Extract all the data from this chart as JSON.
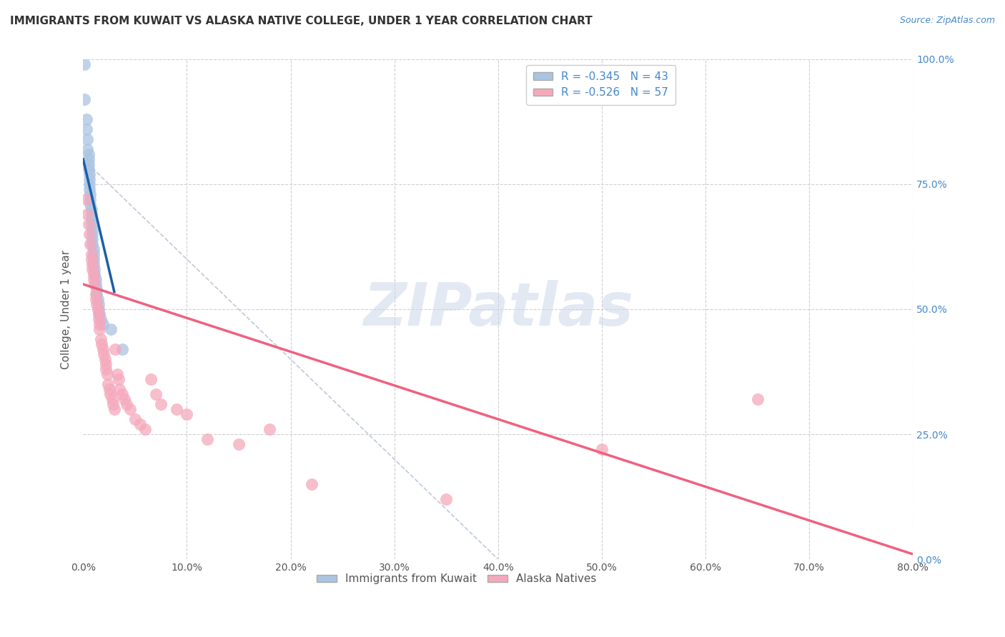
{
  "title": "IMMIGRANTS FROM KUWAIT VS ALASKA NATIVE COLLEGE, UNDER 1 YEAR CORRELATION CHART",
  "source": "Source: ZipAtlas.com",
  "ylabel": "College, Under 1 year",
  "legend_label1": "Immigrants from Kuwait",
  "legend_label2": "Alaska Natives",
  "r1": "-0.345",
  "n1": "43",
  "r2": "-0.526",
  "n2": "57",
  "color_blue": "#aac4e2",
  "color_pink": "#f5a8bc",
  "color_blue_line": "#1a5fa8",
  "color_pink_line": "#f06080",
  "color_dashed": "#c0c8d8",
  "xlim": [
    0.0,
    0.8
  ],
  "ylim": [
    0.0,
    1.0
  ],
  "xtick_labels": [
    "0.0%",
    "10.0%",
    "20.0%",
    "30.0%",
    "40.0%",
    "50.0%",
    "60.0%",
    "70.0%",
    "80.0%"
  ],
  "ytick_labels_right": [
    "0.0%",
    "25.0%",
    "50.0%",
    "75.0%",
    "100.0%"
  ],
  "blue_x": [
    0.001,
    0.001,
    0.003,
    0.003,
    0.004,
    0.004,
    0.005,
    0.005,
    0.005,
    0.005,
    0.006,
    0.006,
    0.006,
    0.006,
    0.007,
    0.007,
    0.007,
    0.008,
    0.008,
    0.008,
    0.008,
    0.009,
    0.009,
    0.009,
    0.009,
    0.01,
    0.01,
    0.01,
    0.01,
    0.011,
    0.011,
    0.012,
    0.012,
    0.013,
    0.013,
    0.014,
    0.015,
    0.015,
    0.016,
    0.017,
    0.019,
    0.027,
    0.038
  ],
  "blue_y": [
    0.99,
    0.92,
    0.88,
    0.86,
    0.84,
    0.82,
    0.81,
    0.8,
    0.79,
    0.78,
    0.77,
    0.76,
    0.75,
    0.74,
    0.73,
    0.72,
    0.71,
    0.7,
    0.69,
    0.68,
    0.67,
    0.66,
    0.65,
    0.64,
    0.63,
    0.62,
    0.61,
    0.6,
    0.59,
    0.58,
    0.57,
    0.56,
    0.55,
    0.54,
    0.53,
    0.52,
    0.51,
    0.5,
    0.49,
    0.48,
    0.47,
    0.46,
    0.42
  ],
  "pink_x": [
    0.003,
    0.004,
    0.005,
    0.006,
    0.007,
    0.008,
    0.008,
    0.009,
    0.009,
    0.01,
    0.01,
    0.011,
    0.012,
    0.012,
    0.013,
    0.014,
    0.015,
    0.015,
    0.016,
    0.016,
    0.017,
    0.018,
    0.019,
    0.02,
    0.021,
    0.022,
    0.022,
    0.023,
    0.024,
    0.025,
    0.026,
    0.028,
    0.029,
    0.03,
    0.031,
    0.033,
    0.034,
    0.035,
    0.038,
    0.04,
    0.042,
    0.045,
    0.05,
    0.055,
    0.06,
    0.065,
    0.07,
    0.075,
    0.09,
    0.1,
    0.12,
    0.15,
    0.18,
    0.22,
    0.35,
    0.5,
    0.65
  ],
  "pink_y": [
    0.72,
    0.69,
    0.67,
    0.65,
    0.63,
    0.61,
    0.6,
    0.59,
    0.58,
    0.57,
    0.56,
    0.55,
    0.53,
    0.52,
    0.51,
    0.5,
    0.49,
    0.48,
    0.47,
    0.46,
    0.44,
    0.43,
    0.42,
    0.41,
    0.4,
    0.39,
    0.38,
    0.37,
    0.35,
    0.34,
    0.33,
    0.32,
    0.31,
    0.3,
    0.42,
    0.37,
    0.36,
    0.34,
    0.33,
    0.32,
    0.31,
    0.3,
    0.28,
    0.27,
    0.26,
    0.36,
    0.33,
    0.31,
    0.3,
    0.29,
    0.24,
    0.23,
    0.26,
    0.15,
    0.12,
    0.22,
    0.32
  ],
  "blue_line_x": [
    0.0,
    0.03
  ],
  "blue_line_y": [
    0.8,
    0.535
  ],
  "pink_line_x": [
    0.0,
    0.8
  ],
  "pink_line_y": [
    0.55,
    0.01
  ],
  "dash_line_x": [
    0.0,
    0.4
  ],
  "dash_line_y": [
    0.8,
    0.0
  ],
  "watermark": "ZIPatlas",
  "background_color": "#ffffff",
  "grid_color": "#d0d0d0",
  "title_color": "#333333",
  "axis_label_color": "#555555",
  "tick_color_right": "#4488cc",
  "figsize": [
    14.06,
    8.92
  ],
  "dpi": 100
}
